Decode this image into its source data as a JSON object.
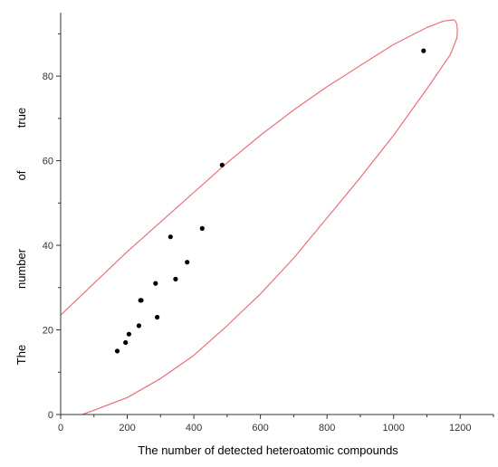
{
  "chart_data": {
    "type": "scatter",
    "xlabel": "The number of detected heteroatomic compounds",
    "ylabel_words": [
      "The",
      "number",
      "of",
      "true"
    ],
    "xlim": [
      0,
      1300
    ],
    "ylim": [
      0,
      95
    ],
    "x_ticks": [
      0,
      200,
      400,
      600,
      800,
      1000,
      1200
    ],
    "y_ticks": [
      0,
      20,
      40,
      60,
      80
    ],
    "grid": false,
    "points": [
      {
        "x": 170,
        "y": 15
      },
      {
        "x": 195,
        "y": 17
      },
      {
        "x": 205,
        "y": 19
      },
      {
        "x": 235,
        "y": 21
      },
      {
        "x": 240,
        "y": 27
      },
      {
        "x": 242,
        "y": 27
      },
      {
        "x": 285,
        "y": 31
      },
      {
        "x": 290,
        "y": 23
      },
      {
        "x": 330,
        "y": 42
      },
      {
        "x": 345,
        "y": 32
      },
      {
        "x": 380,
        "y": 36
      },
      {
        "x": 425,
        "y": 44
      },
      {
        "x": 485,
        "y": 59
      },
      {
        "x": 1090,
        "y": 86
      }
    ],
    "ellipse": {
      "color": "#e8707a",
      "upper_boundary": [
        [
          0,
          23.5
        ],
        [
          100,
          31
        ],
        [
          200,
          38.5
        ],
        [
          300,
          45.5
        ],
        [
          400,
          52.5
        ],
        [
          500,
          59.5
        ],
        [
          600,
          66
        ],
        [
          700,
          72
        ],
        [
          800,
          77.5
        ],
        [
          900,
          82.5
        ],
        [
          1000,
          87.5
        ],
        [
          1100,
          91.5
        ],
        [
          1150,
          93
        ],
        [
          1180,
          93.3
        ]
      ],
      "tip": [
        1195,
        92
      ],
      "lower_boundary": [
        [
          1190,
          89
        ],
        [
          1170,
          85
        ],
        [
          1100,
          77
        ],
        [
          1000,
          66
        ],
        [
          900,
          56
        ],
        [
          800,
          46.5
        ],
        [
          700,
          37
        ],
        [
          600,
          28.5
        ],
        [
          500,
          21
        ],
        [
          400,
          14
        ],
        [
          300,
          8.5
        ],
        [
          200,
          4
        ],
        [
          100,
          1
        ],
        [
          65,
          0
        ]
      ]
    },
    "colors": {
      "axis": "#333333",
      "point": "#000000"
    }
  }
}
